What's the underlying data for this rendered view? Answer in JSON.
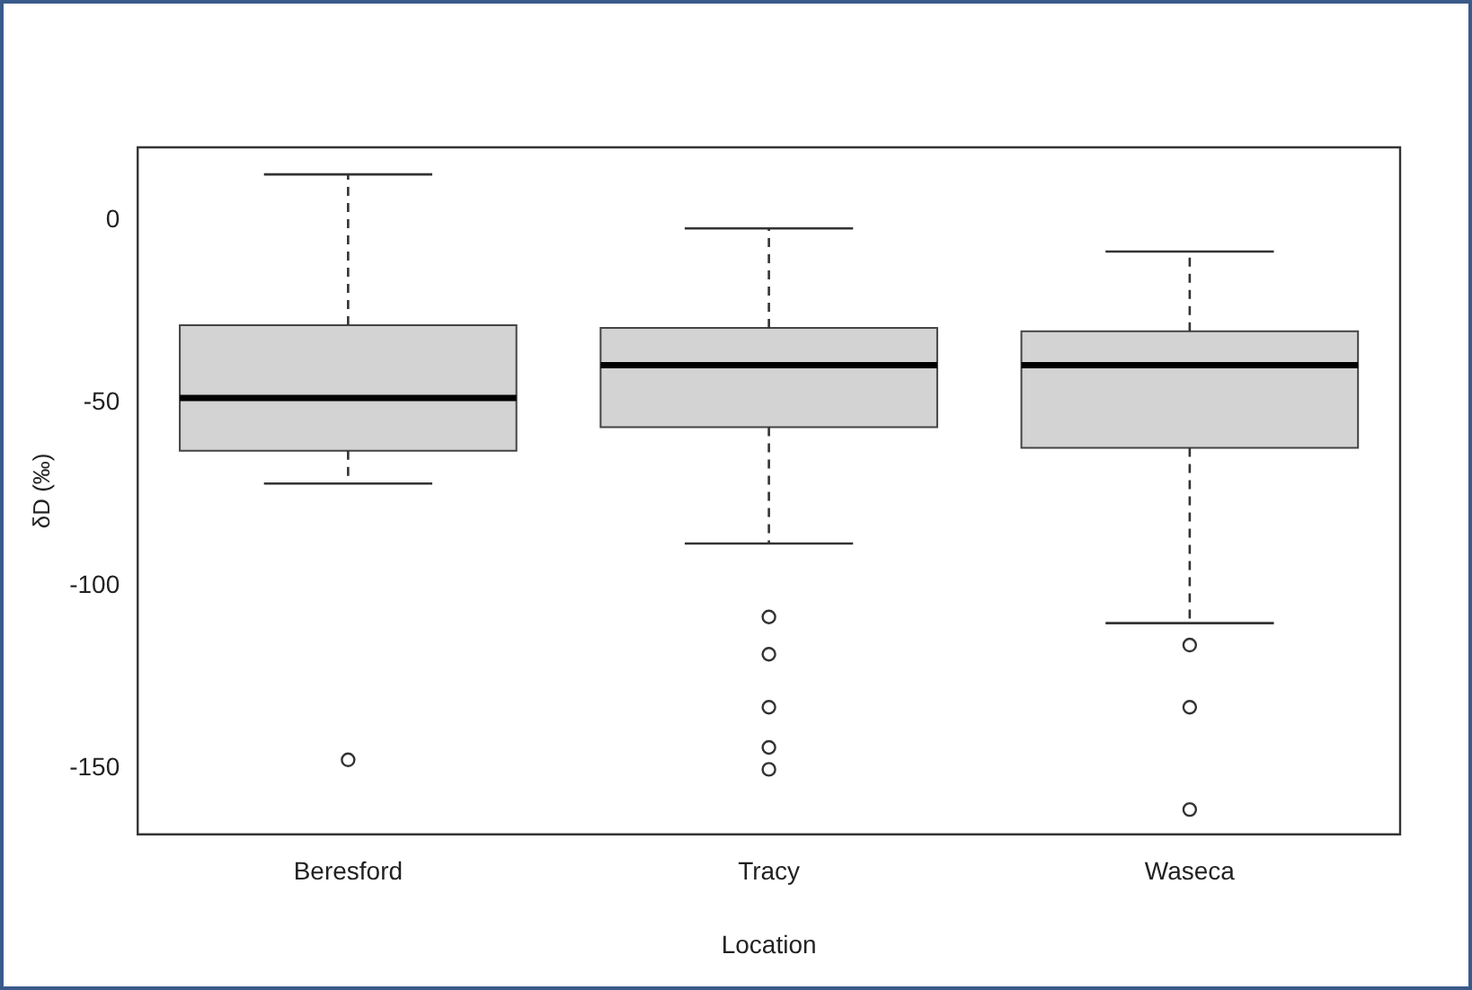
{
  "chart_data": {
    "type": "box",
    "xlabel": "Location",
    "ylabel": "δD (‰)",
    "categories": [
      "Beresford",
      "Tracy",
      "Waseca"
    ],
    "color": "#d3d3d3",
    "boxes": [
      {
        "low": -72,
        "q1": -63,
        "median": -48.6,
        "q3": -28.7,
        "high": 12.6,
        "outliers": [
          -147.6
        ]
      },
      {
        "low": -88.4,
        "q1": -56.6,
        "median": -39.6,
        "q3": -29.4,
        "high": -2.2,
        "outliers": [
          -108.5,
          -118.7,
          -133.2,
          -144.2,
          -150.2
        ]
      },
      {
        "low": -110.2,
        "q1": -62.2,
        "median": -39.6,
        "q3": -30.3,
        "high": -8.5,
        "outliers": [
          -116.2,
          -133.2,
          -161.2
        ]
      }
    ],
    "ylim": [
      -168,
      20
    ],
    "yticks": [
      -150,
      -100,
      -50,
      0
    ],
    "grid": false,
    "legend": false
  }
}
